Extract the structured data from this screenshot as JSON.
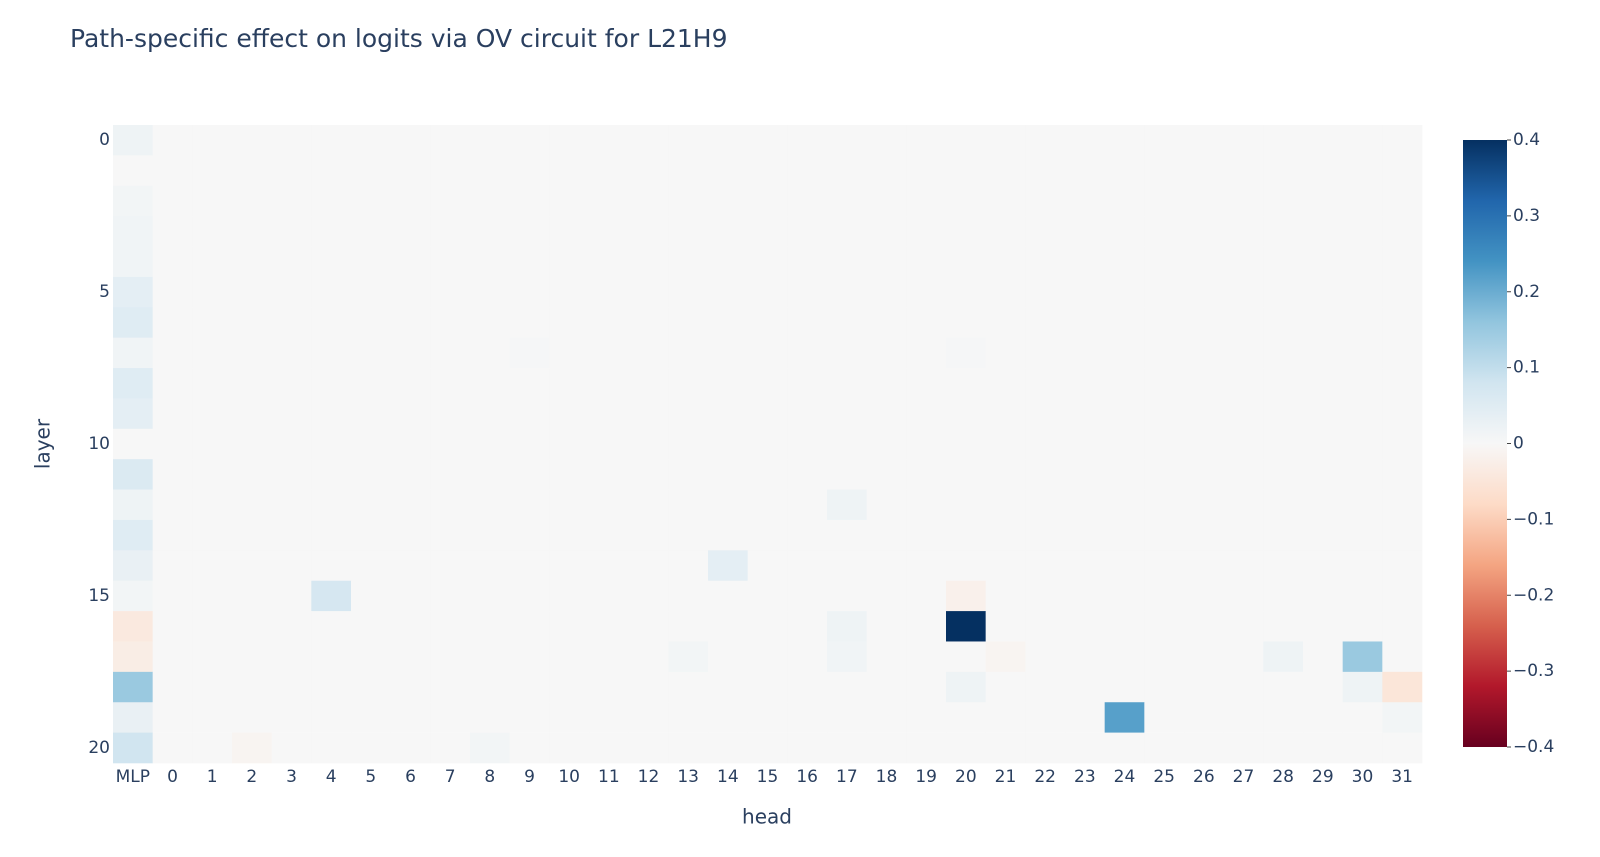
{
  "chart_data": {
    "type": "heatmap",
    "title": "Path-specific effect on logits via OV circuit for L21H9",
    "xlabel": "head",
    "ylabel": "layer",
    "categories": [
      "MLP",
      "0",
      "1",
      "2",
      "3",
      "4",
      "5",
      "6",
      "7",
      "8",
      "9",
      "10",
      "11",
      "12",
      "13",
      "14",
      "15",
      "16",
      "17",
      "18",
      "19",
      "20",
      "21",
      "22",
      "23",
      "24",
      "25",
      "26",
      "27",
      "28",
      "29",
      "30",
      "31"
    ],
    "y": [
      0,
      1,
      2,
      3,
      4,
      5,
      6,
      7,
      8,
      9,
      10,
      11,
      12,
      13,
      14,
      15,
      16,
      17,
      18,
      19,
      20
    ],
    "ylim": [
      -0.5,
      20.5
    ],
    "yreversed": true,
    "yticks": [
      0,
      5,
      10,
      15,
      20
    ],
    "z": [
      [
        0.02,
        0,
        0,
        0,
        0,
        0,
        0,
        0,
        0,
        0,
        0,
        0,
        0,
        0,
        0,
        0,
        0,
        0,
        0,
        0,
        0,
        0,
        0,
        0,
        0,
        0,
        0,
        0,
        0,
        0,
        0,
        0,
        0
      ],
      [
        0,
        0,
        0,
        0,
        0,
        0,
        0,
        0,
        0,
        0,
        0,
        0,
        0,
        0,
        0,
        0,
        0,
        0,
        0,
        0,
        0,
        0,
        0,
        0,
        0,
        0,
        0,
        0,
        0,
        0,
        0,
        0,
        0
      ],
      [
        0.01,
        0,
        0,
        0,
        0,
        0,
        0,
        0,
        0,
        0,
        0,
        0,
        0,
        0,
        0,
        0,
        0,
        0,
        0,
        0,
        0,
        0,
        0,
        0,
        0,
        0,
        0,
        0,
        0,
        0,
        0,
        0,
        0
      ],
      [
        0.015,
        0,
        0,
        0,
        0,
        0,
        0,
        0,
        0,
        0,
        0,
        0,
        0,
        0,
        0,
        0,
        0,
        0,
        0,
        0,
        0,
        0,
        0,
        0,
        0,
        0,
        0,
        0,
        0,
        0,
        0,
        0,
        0
      ],
      [
        0.015,
        0,
        0,
        0,
        0,
        0,
        0,
        0,
        0,
        0,
        0,
        0,
        0,
        0,
        0,
        0,
        0,
        0,
        0,
        0,
        0,
        0,
        0,
        0,
        0,
        0,
        0,
        0,
        0,
        0,
        0,
        0,
        0
      ],
      [
        0.04,
        0,
        0,
        0,
        0,
        0,
        0,
        0,
        0,
        0,
        0,
        0,
        0,
        0,
        0,
        0,
        0,
        0,
        0,
        0,
        0,
        0,
        0,
        0,
        0,
        0,
        0,
        0,
        0,
        0,
        0,
        0,
        0
      ],
      [
        0.05,
        0,
        0,
        0,
        0,
        0,
        0,
        0,
        0,
        0,
        0,
        0,
        0,
        0,
        0,
        0,
        0,
        0,
        0,
        0,
        0,
        0,
        0,
        0,
        0,
        0,
        0,
        0,
        0,
        0,
        0,
        0,
        0
      ],
      [
        0.015,
        0,
        0,
        0,
        0,
        0,
        0,
        0,
        0,
        0,
        0.005,
        0,
        0,
        0,
        0,
        0,
        0,
        0,
        0,
        0,
        0,
        0.005,
        0,
        0,
        0,
        0,
        0,
        0,
        0,
        0,
        0,
        0,
        0
      ],
      [
        0.05,
        0,
        0,
        0,
        0,
        0,
        0,
        0,
        0,
        0,
        0,
        0,
        0,
        0,
        0,
        0,
        0,
        0,
        0,
        0,
        0,
        0,
        0,
        0,
        0,
        0,
        0,
        0,
        0,
        0,
        0,
        0,
        0
      ],
      [
        0.04,
        0,
        0,
        0,
        0,
        0,
        0,
        0,
        0,
        0,
        0,
        0,
        0,
        0,
        0,
        0,
        0,
        0,
        0,
        0,
        0,
        0,
        0,
        0,
        0,
        0,
        0,
        0,
        0,
        0,
        0,
        0,
        0
      ],
      [
        0,
        0,
        0,
        0,
        0,
        0,
        0,
        0,
        0,
        0,
        0,
        0,
        0,
        0,
        0,
        0,
        0,
        0,
        0,
        0,
        0,
        0,
        0,
        0,
        0,
        0,
        0,
        0,
        0,
        0,
        0,
        0,
        0
      ],
      [
        0.06,
        0,
        0,
        0,
        0,
        0,
        0,
        0,
        0,
        0,
        0,
        0,
        0,
        0,
        0,
        0,
        0,
        0,
        0,
        0,
        0,
        0,
        0,
        0,
        0,
        0,
        0,
        0,
        0,
        0,
        0,
        0,
        0
      ],
      [
        0.02,
        0,
        0,
        0,
        0,
        0,
        0,
        0,
        0,
        0,
        0,
        0,
        0,
        0,
        0,
        0,
        0,
        0,
        0.02,
        0,
        0,
        0,
        0,
        0,
        0,
        0,
        0,
        0,
        0,
        0,
        0,
        0,
        0
      ],
      [
        0.05,
        0,
        0,
        0,
        0,
        0,
        0,
        0,
        0,
        0,
        0,
        0,
        0,
        0,
        0,
        0,
        0,
        0,
        0,
        0,
        0,
        0,
        0,
        0,
        0,
        0,
        0,
        0,
        0,
        0,
        0,
        0,
        0
      ],
      [
        0.03,
        0,
        0,
        0,
        0,
        0,
        0,
        0,
        0,
        0,
        0,
        0,
        0,
        0,
        0,
        0.04,
        0,
        0,
        0,
        0,
        0,
        0,
        0,
        0,
        0,
        0,
        0,
        0,
        0,
        0,
        0,
        0,
        0
      ],
      [
        0.01,
        0,
        0,
        0,
        0,
        0.07,
        0,
        0,
        0,
        0,
        0,
        0,
        0,
        0,
        0,
        0,
        0,
        0,
        0,
        0,
        0,
        -0.02,
        0,
        0,
        0,
        0,
        0,
        0,
        0,
        0,
        0,
        0,
        0
      ],
      [
        -0.04,
        0,
        0,
        0,
        0,
        0,
        0,
        0,
        0,
        0,
        0,
        0,
        0,
        0,
        0,
        0,
        0,
        0,
        0.02,
        0,
        0,
        0.4,
        0,
        0,
        0,
        0,
        0,
        0,
        0,
        0,
        0,
        0,
        0
      ],
      [
        -0.03,
        0,
        0,
        0,
        0,
        0,
        0,
        0,
        0,
        0,
        0,
        0,
        0,
        0,
        0.01,
        0,
        0,
        0,
        0.015,
        0,
        0,
        0,
        -0.01,
        0,
        0,
        0,
        0,
        0,
        0,
        0.02,
        0,
        0.15,
        0
      ],
      [
        0.15,
        0,
        0,
        0,
        0,
        0,
        0,
        0,
        0,
        0,
        0,
        0,
        0,
        0,
        0,
        0,
        0,
        0,
        0,
        0,
        0,
        0.02,
        0,
        0,
        0,
        0,
        0,
        0,
        0,
        0,
        0,
        0.02,
        -0.05
      ],
      [
        0.03,
        0,
        0,
        0,
        0,
        0,
        0,
        0,
        0,
        0,
        0,
        0,
        0,
        0,
        0,
        0,
        0,
        0,
        0,
        0,
        0,
        0,
        0,
        0,
        0,
        0.22,
        0,
        0,
        0,
        0,
        0,
        0,
        0.01
      ],
      [
        0.08,
        0,
        0,
        -0.01,
        0,
        0,
        0,
        0,
        0,
        0.01,
        0,
        0,
        0,
        0,
        0,
        0,
        0,
        0,
        0,
        0,
        0,
        0,
        0,
        0,
        0,
        0,
        0,
        0,
        0,
        0,
        0,
        0,
        0
      ]
    ],
    "zlim": [
      -0.4,
      0.4
    ],
    "zticks": [
      {
        "value": -0.4,
        "label": "−0.4"
      },
      {
        "value": -0.3,
        "label": "−0.3"
      },
      {
        "value": -0.2,
        "label": "−0.2"
      },
      {
        "value": -0.1,
        "label": "−0.1"
      },
      0,
      0.1,
      0.2,
      0.3,
      0.4
    ],
    "colorscale": [
      "#67001f",
      "#b2182b",
      "#d6604d",
      "#f4a582",
      "#fddbc7",
      "#f7f7f7",
      "#d1e5f0",
      "#92c5de",
      "#4393c3",
      "#2166ac",
      "#053061"
    ]
  }
}
